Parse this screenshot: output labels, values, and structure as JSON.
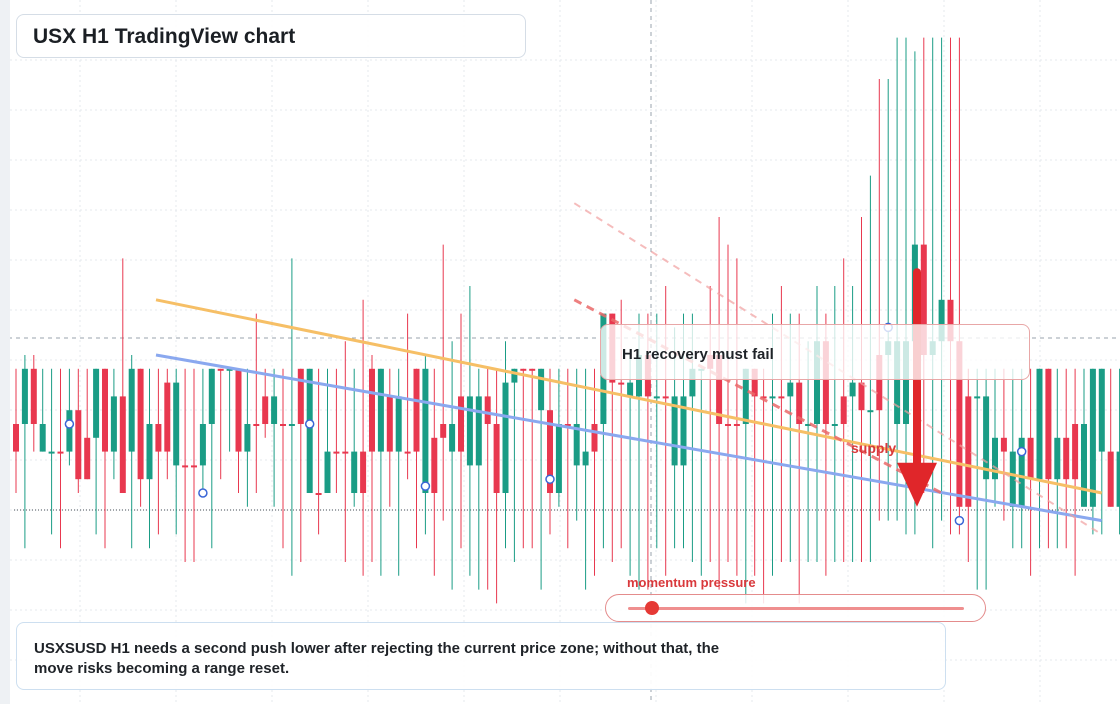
{
  "title": "USX H1 TradingView chart",
  "callout": "H1 recovery must fail",
  "note": "USXSUSD H1 needs a second push lower after rejecting the current price zone; without that, the move risks becoming a range reset.",
  "momentum": {
    "label": "momentum pressure",
    "level": 0.07
  },
  "supply_label": "supply",
  "colors": {
    "up": "#1a9c85",
    "down": "#e8384f",
    "trend_orange": "#f6bf66",
    "trend_blue": "#8aa8ef",
    "arrow": "#e0262a",
    "dashed": "#eb6a6a"
  },
  "chart_data": {
    "type": "candlestick",
    "title": "USX H1 TradingView chart",
    "ylim": [
      0,
      100
    ],
    "candles": [
      [
        36,
        48,
        30,
        40,
        "d"
      ],
      [
        40,
        50,
        22,
        48,
        "u"
      ],
      [
        48,
        50,
        36,
        40,
        "d"
      ],
      [
        40,
        48,
        36,
        36,
        "u"
      ],
      [
        36,
        48,
        24,
        36,
        "u"
      ],
      [
        36,
        48,
        22,
        36,
        "d"
      ],
      [
        36,
        48,
        34,
        42,
        "u"
      ],
      [
        42,
        48,
        30,
        32,
        "d"
      ],
      [
        32,
        48,
        32,
        38,
        "d"
      ],
      [
        38,
        48,
        24,
        48,
        "u"
      ],
      [
        48,
        48,
        22,
        36,
        "d"
      ],
      [
        36,
        48,
        32,
        44,
        "u"
      ],
      [
        44,
        64,
        30,
        30,
        "d"
      ],
      [
        36,
        50,
        22,
        48,
        "u"
      ],
      [
        48,
        48,
        28,
        32,
        "d"
      ],
      [
        32,
        48,
        22,
        40,
        "u"
      ],
      [
        40,
        48,
        24,
        36,
        "d"
      ],
      [
        36,
        48,
        32,
        46,
        "d"
      ],
      [
        46,
        48,
        24,
        34,
        "u"
      ],
      [
        34,
        48,
        20,
        34,
        "d"
      ],
      [
        34,
        48,
        20,
        34,
        "d"
      ],
      [
        34,
        48,
        30,
        40,
        "u"
      ],
      [
        40,
        48,
        22,
        48,
        "u"
      ],
      [
        48,
        48,
        32,
        48,
        "d"
      ],
      [
        48,
        48,
        36,
        48,
        "u"
      ],
      [
        48,
        48,
        30,
        36,
        "d"
      ],
      [
        36,
        48,
        28,
        40,
        "u"
      ],
      [
        40,
        56,
        30,
        40,
        "d"
      ],
      [
        40,
        48,
        38,
        44,
        "d"
      ],
      [
        44,
        48,
        28,
        40,
        "u"
      ],
      [
        40,
        48,
        22,
        40,
        "d"
      ],
      [
        40,
        64,
        18,
        40,
        "u"
      ],
      [
        40,
        48,
        20,
        48,
        "d"
      ],
      [
        48,
        48,
        30,
        30,
        "u"
      ],
      [
        30,
        48,
        24,
        30,
        "d"
      ],
      [
        30,
        48,
        30,
        36,
        "u"
      ],
      [
        36,
        48,
        30,
        36,
        "d"
      ],
      [
        36,
        52,
        20,
        36,
        "d"
      ],
      [
        36,
        48,
        28,
        30,
        "u"
      ],
      [
        30,
        58,
        18,
        36,
        "d"
      ],
      [
        36,
        50,
        20,
        48,
        "d"
      ],
      [
        48,
        48,
        18,
        36,
        "u"
      ],
      [
        36,
        48,
        28,
        44,
        "d"
      ],
      [
        44,
        48,
        18,
        36,
        "u"
      ],
      [
        36,
        56,
        32,
        36,
        "d"
      ],
      [
        36,
        48,
        22,
        48,
        "d"
      ],
      [
        48,
        50,
        24,
        30,
        "u"
      ],
      [
        30,
        48,
        18,
        38,
        "d"
      ],
      [
        38,
        66,
        26,
        40,
        "d"
      ],
      [
        40,
        52,
        16,
        36,
        "u"
      ],
      [
        36,
        56,
        22,
        44,
        "d"
      ],
      [
        44,
        60,
        18,
        34,
        "u"
      ],
      [
        34,
        48,
        16,
        44,
        "u"
      ],
      [
        44,
        48,
        16,
        40,
        "d"
      ],
      [
        40,
        48,
        14,
        30,
        "d"
      ],
      [
        30,
        52,
        22,
        46,
        "u"
      ],
      [
        46,
        48,
        20,
        48,
        "u"
      ],
      [
        48,
        48,
        22,
        48,
        "d"
      ],
      [
        48,
        48,
        22,
        48,
        "d"
      ],
      [
        48,
        48,
        16,
        42,
        "u"
      ],
      [
        42,
        48,
        24,
        30,
        "d"
      ],
      [
        30,
        48,
        28,
        40,
        "u"
      ],
      [
        40,
        48,
        22,
        40,
        "d"
      ],
      [
        40,
        48,
        26,
        34,
        "u"
      ],
      [
        34,
        48,
        16,
        36,
        "u"
      ],
      [
        36,
        48,
        18,
        40,
        "d"
      ],
      [
        40,
        56,
        22,
        56,
        "u"
      ],
      [
        56,
        56,
        20,
        46,
        "d"
      ],
      [
        46,
        58,
        22,
        46,
        "d"
      ],
      [
        46,
        50,
        18,
        44,
        "u"
      ],
      [
        44,
        56,
        16,
        50,
        "u"
      ],
      [
        50,
        56,
        16,
        44,
        "d"
      ],
      [
        44,
        56,
        22,
        44,
        "u"
      ],
      [
        44,
        60,
        18,
        44,
        "d"
      ],
      [
        44,
        54,
        22,
        34,
        "u"
      ],
      [
        34,
        56,
        22,
        44,
        "u"
      ],
      [
        44,
        56,
        20,
        48,
        "u"
      ],
      [
        48,
        48,
        18,
        48,
        "u"
      ],
      [
        48,
        60,
        20,
        50,
        "d"
      ],
      [
        50,
        70,
        16,
        40,
        "d"
      ],
      [
        40,
        66,
        20,
        40,
        "d"
      ],
      [
        40,
        64,
        18,
        40,
        "d"
      ],
      [
        40,
        48,
        14,
        48,
        "u"
      ],
      [
        48,
        48,
        18,
        44,
        "d"
      ],
      [
        44,
        48,
        14,
        44,
        "d"
      ],
      [
        44,
        56,
        18,
        44,
        "u"
      ],
      [
        44,
        60,
        20,
        44,
        "d"
      ],
      [
        44,
        56,
        20,
        46,
        "u"
      ],
      [
        46,
        56,
        14,
        40,
        "d"
      ],
      [
        40,
        52,
        20,
        40,
        "u"
      ],
      [
        40,
        60,
        20,
        52,
        "u"
      ],
      [
        52,
        56,
        18,
        40,
        "d"
      ],
      [
        40,
        60,
        20,
        40,
        "u"
      ],
      [
        40,
        64,
        20,
        44,
        "d"
      ],
      [
        44,
        60,
        20,
        46,
        "u"
      ],
      [
        46,
        70,
        20,
        42,
        "d"
      ],
      [
        42,
        76,
        20,
        42,
        "u"
      ],
      [
        42,
        90,
        26,
        50,
        "d"
      ],
      [
        50,
        90,
        26,
        52,
        "u"
      ],
      [
        52,
        96,
        26,
        40,
        "u"
      ],
      [
        40,
        96,
        24,
        52,
        "u"
      ],
      [
        52,
        94,
        24,
        66,
        "u"
      ],
      [
        66,
        96,
        30,
        50,
        "d"
      ],
      [
        50,
        96,
        22,
        52,
        "u"
      ],
      [
        52,
        96,
        26,
        58,
        "u"
      ],
      [
        58,
        96,
        24,
        52,
        "d"
      ],
      [
        52,
        96,
        24,
        28,
        "d"
      ],
      [
        28,
        48,
        20,
        44,
        "d"
      ],
      [
        44,
        48,
        16,
        44,
        "u"
      ],
      [
        44,
        48,
        16,
        32,
        "u"
      ],
      [
        32,
        48,
        28,
        38,
        "u"
      ],
      [
        38,
        48,
        26,
        36,
        "d"
      ],
      [
        36,
        48,
        22,
        28,
        "u"
      ],
      [
        28,
        48,
        22,
        38,
        "u"
      ],
      [
        38,
        48,
        18,
        32,
        "d"
      ],
      [
        32,
        48,
        22,
        48,
        "u"
      ],
      [
        48,
        48,
        22,
        32,
        "d"
      ],
      [
        32,
        48,
        22,
        38,
        "u"
      ],
      [
        38,
        48,
        22,
        32,
        "d"
      ],
      [
        32,
        48,
        18,
        40,
        "d"
      ],
      [
        40,
        48,
        28,
        28,
        "u"
      ],
      [
        28,
        48,
        24,
        48,
        "u"
      ],
      [
        48,
        48,
        24,
        36,
        "u"
      ],
      [
        36,
        48,
        28,
        28,
        "d"
      ],
      [
        28,
        48,
        24,
        36,
        "u"
      ]
    ],
    "trendlines": [
      {
        "color": "orange",
        "points": [
          [
            0,
            58
          ],
          [
            122,
            30
          ]
        ]
      },
      {
        "color": "blue",
        "points": [
          [
            0,
            50
          ],
          [
            122,
            26
          ]
        ]
      },
      {
        "color": "dashed-red",
        "points": [
          [
            47,
            58
          ],
          [
            104,
            30
          ]
        ]
      },
      {
        "color": "dashed-pink",
        "points": [
          [
            47,
            72
          ],
          [
            122,
            24
          ]
        ]
      }
    ],
    "arrow": {
      "from": 62,
      "to": 28,
      "x": 107
    },
    "markers": [
      [
        6,
        40
      ],
      [
        21,
        30
      ],
      [
        33,
        40
      ],
      [
        46,
        31
      ],
      [
        60,
        32
      ],
      [
        98,
        54
      ],
      [
        113,
        36
      ],
      [
        106,
        26
      ]
    ]
  }
}
